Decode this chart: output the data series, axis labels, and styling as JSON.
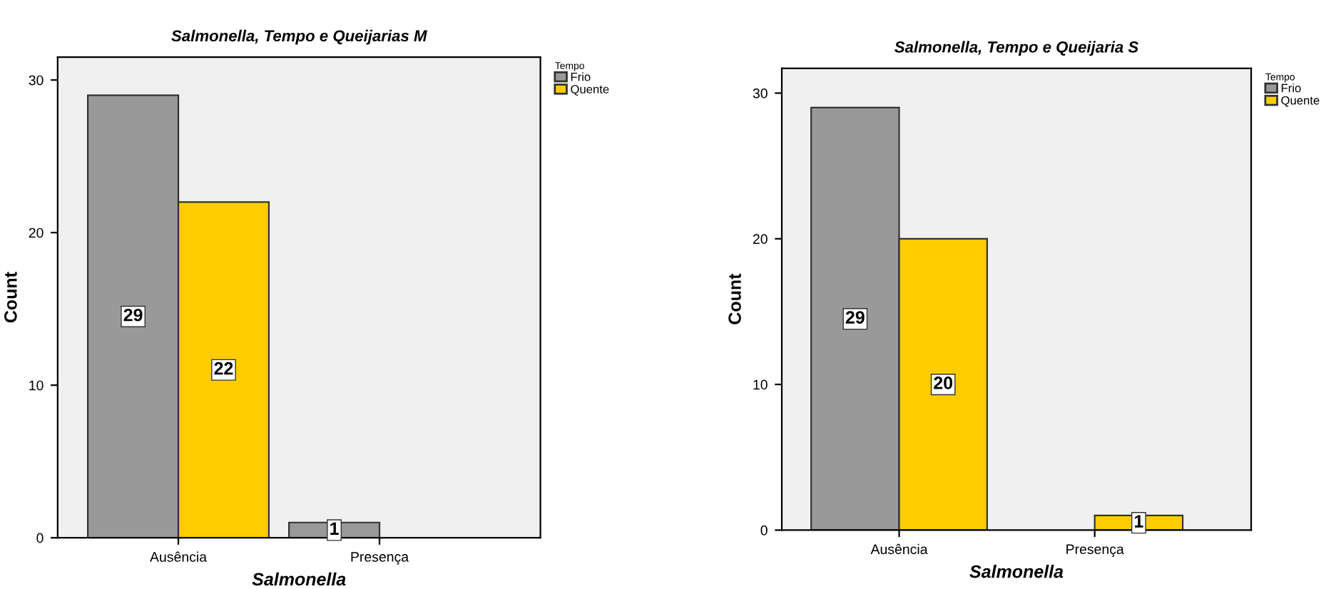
{
  "chart_data": [
    {
      "type": "bar",
      "title": "Salmonella, Tempo e Queijarias M",
      "xlabel": "Salmonella",
      "ylabel": "Count",
      "legend_title": "Tempo",
      "categories": [
        "Ausência",
        "Presença"
      ],
      "series": [
        {
          "name": "Frio",
          "color": "#999999",
          "values": [
            29,
            1
          ]
        },
        {
          "name": "Quente",
          "color": "#ffcc00",
          "values": [
            22,
            null
          ]
        }
      ],
      "ylim": [
        0,
        31.5
      ],
      "yticks": [
        0,
        10,
        20,
        30
      ],
      "data_labels": true,
      "legend": "top right",
      "grid": false
    },
    {
      "type": "bar",
      "title": "Salmonella, Tempo e Queijaria S",
      "xlabel": "Salmonella",
      "ylabel": "Count",
      "legend_title": "Tempo",
      "categories": [
        "Ausência",
        "Presença"
      ],
      "series": [
        {
          "name": "Frio",
          "color": "#999999",
          "values": [
            29,
            null
          ]
        },
        {
          "name": "Quente",
          "color": "#ffcc00",
          "values": [
            20,
            1
          ]
        }
      ],
      "ylim": [
        0,
        31.7
      ],
      "yticks": [
        0,
        10,
        20,
        30
      ],
      "data_labels": true,
      "legend": "top right",
      "grid": false
    }
  ]
}
